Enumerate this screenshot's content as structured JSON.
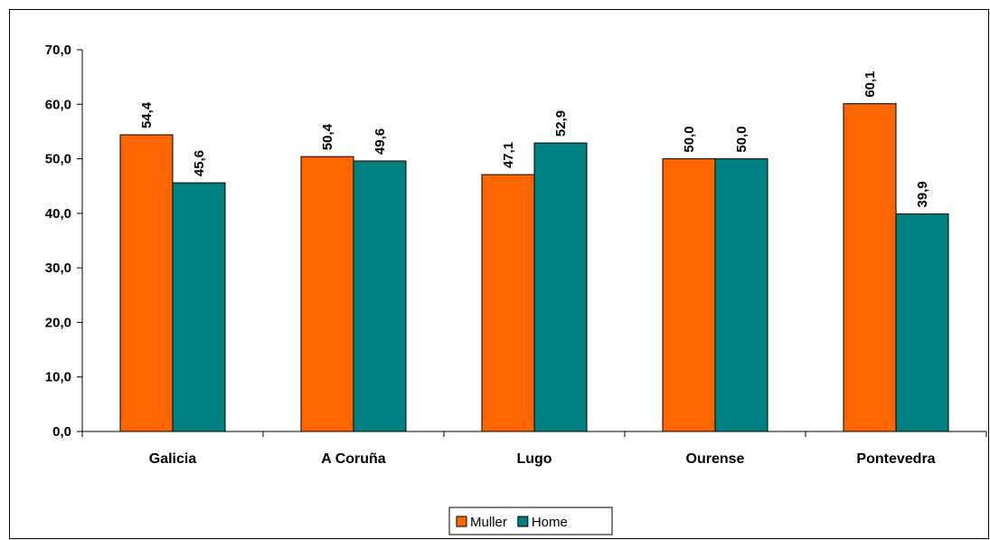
{
  "chart_data": {
    "type": "bar",
    "title": "",
    "xlabel": "",
    "ylabel": "",
    "categories": [
      "Galicia",
      "A Coruña",
      "Lugo",
      "Ourense",
      "Pontevedra"
    ],
    "series": [
      {
        "name": "Muller",
        "color": "#FF6600",
        "values": [
          54.4,
          50.4,
          47.1,
          50.0,
          60.1
        ],
        "labels": [
          "54,4",
          "50,4",
          "47,1",
          "50,0",
          "60,1"
        ]
      },
      {
        "name": "Home",
        "color": "#008080",
        "values": [
          45.6,
          49.6,
          52.9,
          50.0,
          39.9
        ],
        "labels": [
          "45,6",
          "49,6",
          "52,9",
          "50,0",
          "39,9"
        ]
      }
    ],
    "ylim": [
      0,
      70
    ],
    "yticks": [
      0,
      10,
      20,
      30,
      40,
      50,
      60,
      70
    ],
    "ytick_labels": [
      "0,0",
      "10,0",
      "20,0",
      "30,0",
      "40,0",
      "50,0",
      "60,0",
      "70,0"
    ],
    "grid": false,
    "legend_position": "bottom"
  }
}
